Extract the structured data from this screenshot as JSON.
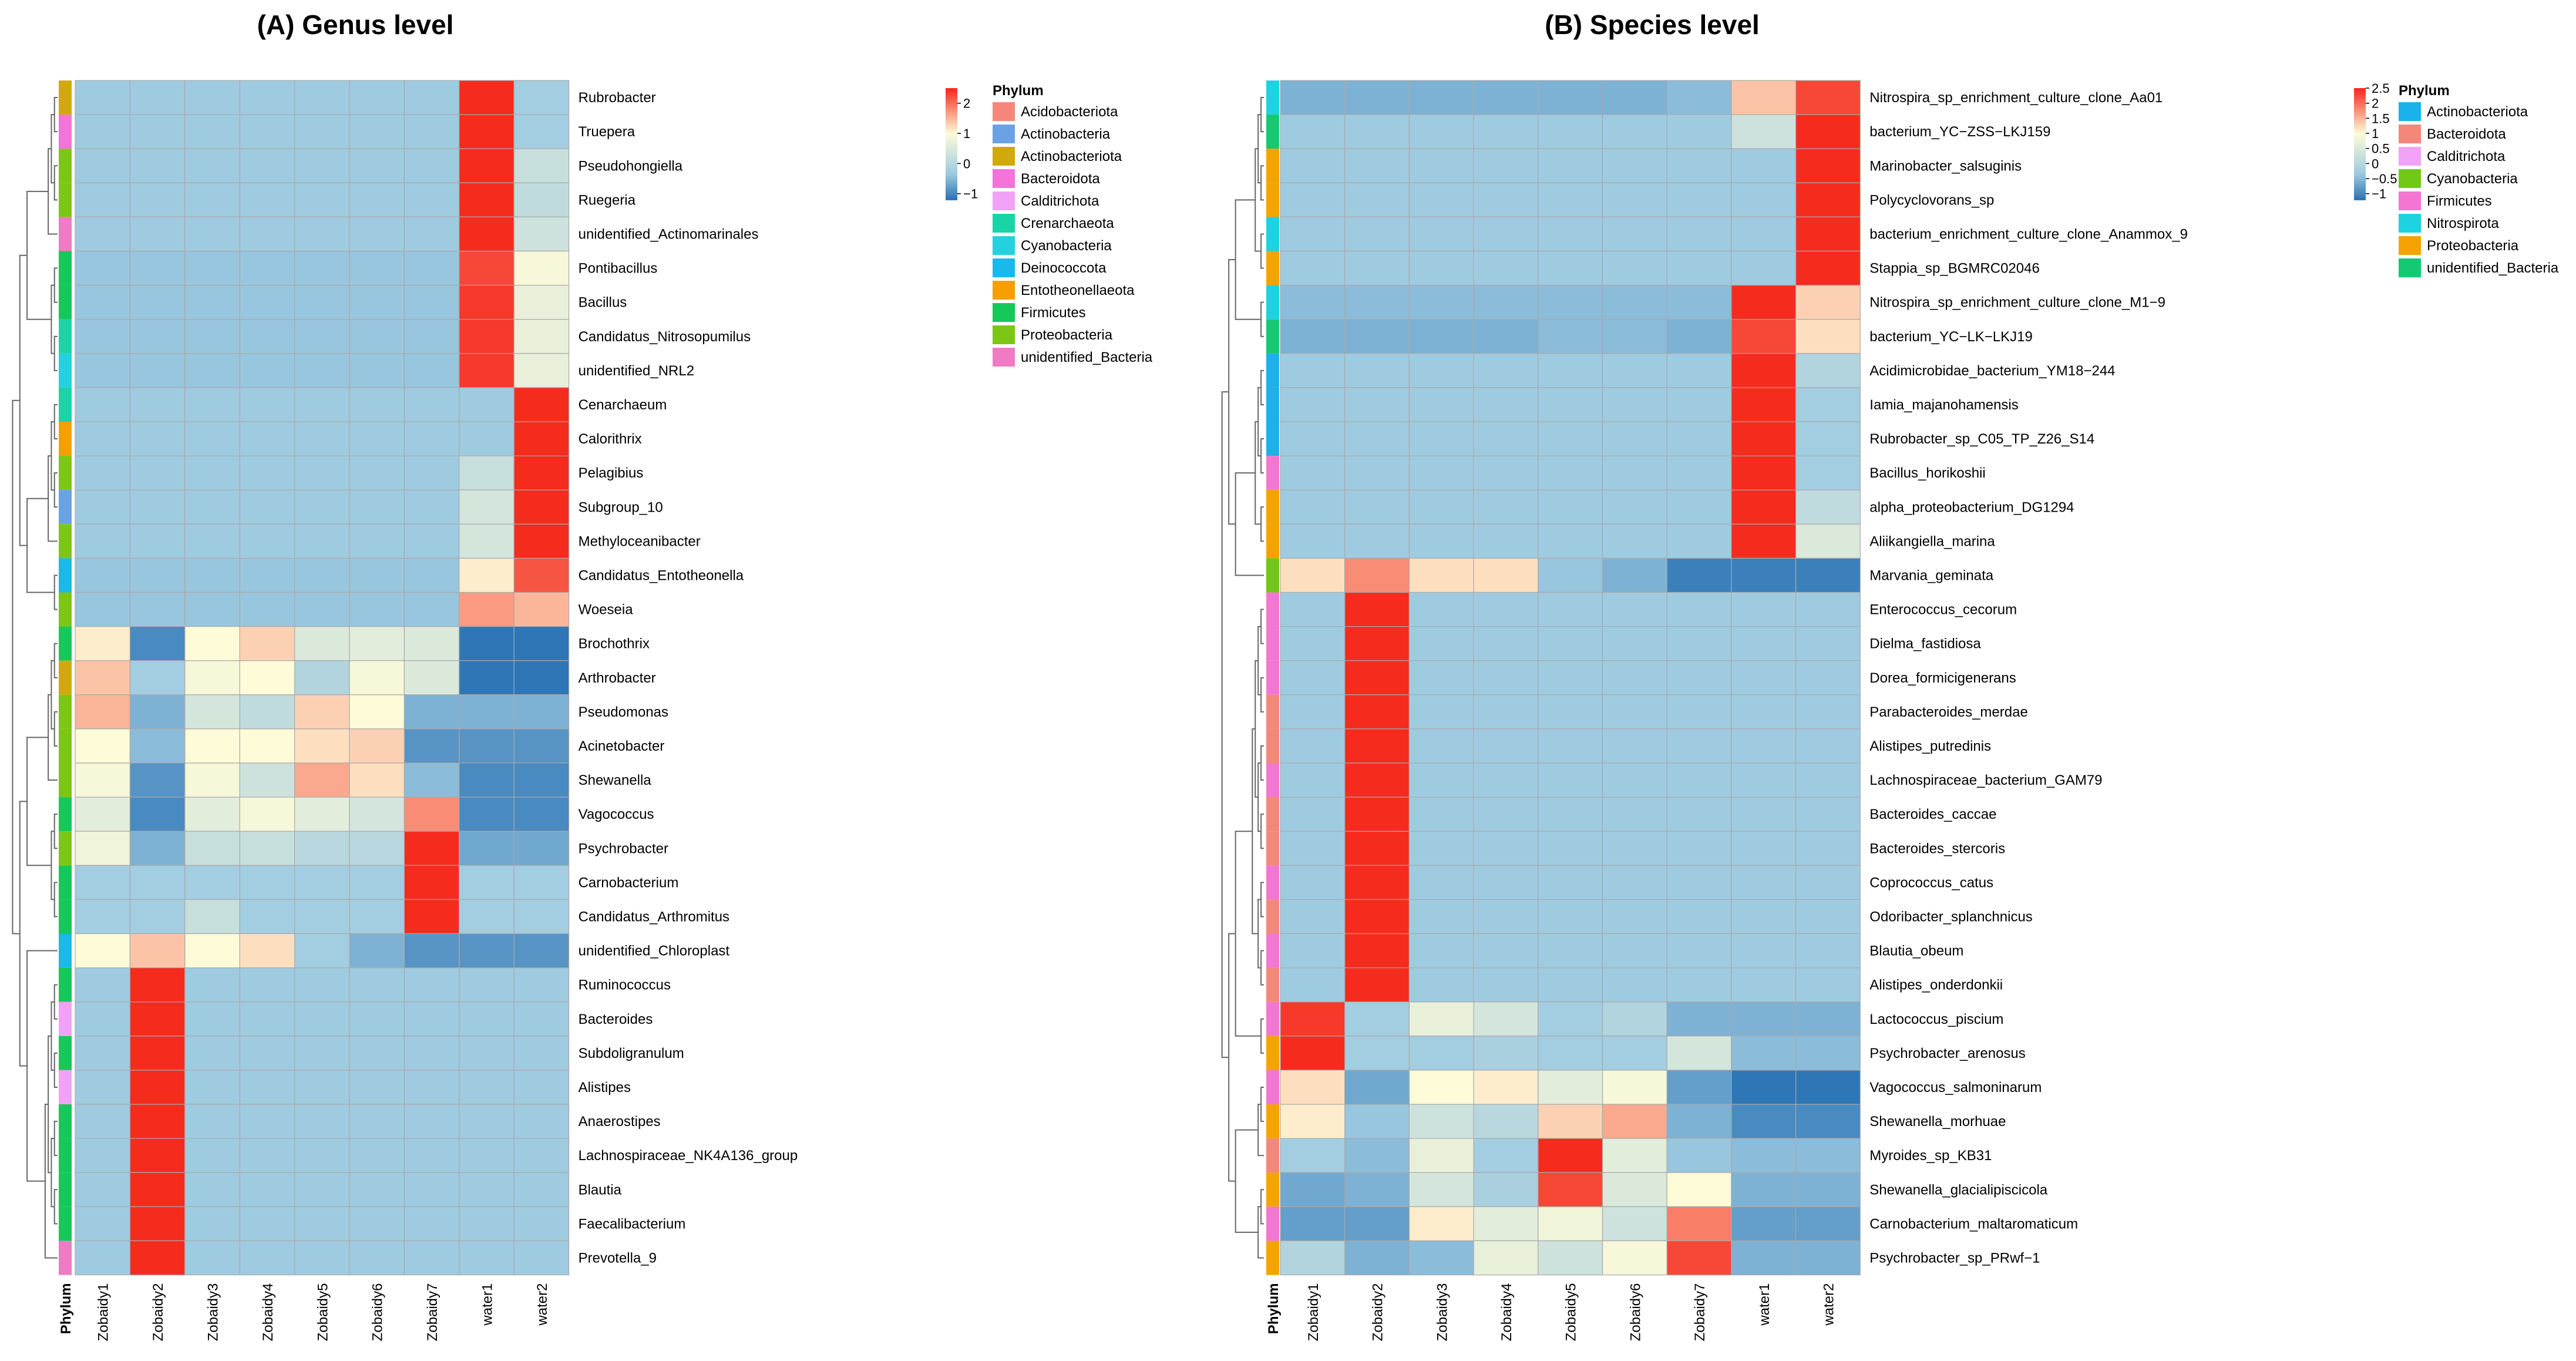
{
  "palette": {
    "scale_neg": "#2f76b6",
    "scale_mid": "#9fcbe1",
    "scale_light": "#fefbd8",
    "scale_pos": "#f52b1e",
    "grid": "#a9a9a9",
    "dendro": "#666666"
  },
  "chart_data": [
    {
      "type": "heatmap",
      "title": "(A) Genus level",
      "columns": [
        "Zobaidy1",
        "Zobaidy2",
        "Zobaidy3",
        "Zobaidy4",
        "Zobaidy5",
        "Zobaidy6",
        "Zobaidy7",
        "water1",
        "water2"
      ],
      "rows": [
        "Rubrobacter",
        "Truepera",
        "Pseudohongiella",
        "Ruegeria",
        "unidentified_Actinomarinales",
        "Pontibacillus",
        "Bacillus",
        "Candidatus_Nitrosopumilus",
        "unidentified_NRL2",
        "Cenarchaeum",
        "Calorithrix",
        "Pelagibius",
        "Subgroup_10",
        "Methyloceanibacter",
        "Candidatus_Entotheonella",
        "Woeseia",
        "Brochothrix",
        "Arthrobacter",
        "Pseudomonas",
        "Acinetobacter",
        "Shewanella",
        "Vagococcus",
        "Psychrobacter",
        "Carnobacterium",
        "Candidatus_Arthromitus",
        "unidentified_Chloroplast",
        "Ruminococcus",
        "Bacteroides",
        "Subdoligranulum",
        "Alistipes",
        "Anaerostipes",
        "Lachnospiraceae_NK4A136_group",
        "Blautia",
        "Faecalibacterium",
        "Prevotella_9"
      ],
      "row_phylum": [
        2,
        3,
        10,
        10,
        11,
        9,
        9,
        5,
        6,
        5,
        8,
        10,
        1,
        10,
        7,
        10,
        9,
        2,
        10,
        10,
        10,
        9,
        10,
        9,
        9,
        7,
        9,
        4,
        9,
        4,
        9,
        9,
        9,
        9,
        11
      ],
      "values": [
        [
          -0.35,
          -0.35,
          -0.35,
          -0.35,
          -0.35,
          -0.35,
          -0.35,
          2.6,
          -0.3
        ],
        [
          -0.35,
          -0.35,
          -0.35,
          -0.35,
          -0.35,
          -0.35,
          -0.35,
          2.6,
          -0.3
        ],
        [
          -0.35,
          -0.35,
          -0.35,
          -0.35,
          -0.35,
          -0.35,
          -0.35,
          2.6,
          0.2
        ],
        [
          -0.35,
          -0.35,
          -0.35,
          -0.35,
          -0.35,
          -0.35,
          -0.35,
          2.6,
          0.1
        ],
        [
          -0.35,
          -0.35,
          -0.35,
          -0.35,
          -0.35,
          -0.35,
          -0.35,
          2.6,
          0.3
        ],
        [
          -0.4,
          -0.4,
          -0.4,
          -0.4,
          -0.4,
          -0.4,
          -0.4,
          2.3,
          0.9
        ],
        [
          -0.4,
          -0.4,
          -0.4,
          -0.4,
          -0.4,
          -0.4,
          -0.4,
          2.4,
          0.7
        ],
        [
          -0.4,
          -0.4,
          -0.4,
          -0.4,
          -0.4,
          -0.4,
          -0.4,
          2.4,
          0.7
        ],
        [
          -0.4,
          -0.4,
          -0.4,
          -0.4,
          -0.4,
          -0.4,
          -0.4,
          2.4,
          0.7
        ],
        [
          -0.35,
          -0.35,
          -0.35,
          -0.35,
          -0.35,
          -0.35,
          -0.35,
          -0.35,
          2.7
        ],
        [
          -0.35,
          -0.35,
          -0.35,
          -0.35,
          -0.35,
          -0.35,
          -0.35,
          -0.35,
          2.7
        ],
        [
          -0.35,
          -0.35,
          -0.35,
          -0.35,
          -0.35,
          -0.35,
          -0.35,
          0.2,
          2.6
        ],
        [
          -0.35,
          -0.35,
          -0.35,
          -0.35,
          -0.35,
          -0.35,
          -0.35,
          0.4,
          2.6
        ],
        [
          -0.35,
          -0.35,
          -0.35,
          -0.35,
          -0.35,
          -0.35,
          -0.35,
          0.4,
          2.6
        ],
        [
          -0.4,
          -0.4,
          -0.4,
          -0.4,
          -0.4,
          -0.4,
          -0.4,
          1.1,
          2.2
        ],
        [
          -0.4,
          -0.4,
          -0.4,
          -0.4,
          -0.4,
          -0.4,
          -0.4,
          1.7,
          1.5
        ],
        [
          1.1,
          -1.0,
          1.0,
          1.3,
          0.5,
          0.6,
          0.5,
          -1.2,
          -1.2
        ],
        [
          1.4,
          -0.3,
          0.9,
          1.0,
          -0.1,
          0.9,
          0.5,
          -1.2,
          -1.2
        ],
        [
          1.5,
          -0.6,
          0.4,
          0.1,
          1.3,
          1.0,
          -0.6,
          -0.6,
          -0.6
        ],
        [
          1.0,
          -0.5,
          1.0,
          1.0,
          1.2,
          1.3,
          -0.9,
          -0.9,
          -0.9
        ],
        [
          0.9,
          -0.9,
          0.9,
          0.3,
          1.6,
          1.2,
          -0.5,
          -1.0,
          -1.0
        ],
        [
          0.6,
          -1.0,
          0.6,
          0.9,
          0.6,
          0.4,
          1.8,
          -1.0,
          -1.0
        ],
        [
          0.8,
          -0.6,
          0.2,
          0.2,
          0.0,
          0.0,
          2.6,
          -0.7,
          -0.7
        ],
        [
          -0.3,
          -0.3,
          -0.3,
          -0.3,
          -0.3,
          -0.3,
          2.8,
          -0.3,
          -0.3
        ],
        [
          -0.3,
          -0.3,
          0.2,
          -0.3,
          -0.3,
          -0.3,
          2.8,
          -0.3,
          -0.3
        ],
        [
          1.0,
          1.4,
          1.0,
          1.2,
          -0.3,
          -0.6,
          -0.9,
          -0.9,
          -0.9
        ],
        [
          -0.35,
          2.8,
          -0.35,
          -0.35,
          -0.35,
          -0.35,
          -0.35,
          -0.35,
          -0.35
        ],
        [
          -0.35,
          2.8,
          -0.35,
          -0.35,
          -0.35,
          -0.35,
          -0.35,
          -0.35,
          -0.35
        ],
        [
          -0.35,
          2.8,
          -0.35,
          -0.35,
          -0.35,
          -0.35,
          -0.35,
          -0.35,
          -0.35
        ],
        [
          -0.35,
          2.8,
          -0.35,
          -0.35,
          -0.35,
          -0.35,
          -0.35,
          -0.35,
          -0.35
        ],
        [
          -0.35,
          2.8,
          -0.35,
          -0.35,
          -0.35,
          -0.35,
          -0.35,
          -0.35,
          -0.35
        ],
        [
          -0.35,
          2.8,
          -0.35,
          -0.35,
          -0.35,
          -0.35,
          -0.35,
          -0.35,
          -0.35
        ],
        [
          -0.35,
          2.8,
          -0.35,
          -0.35,
          -0.35,
          -0.35,
          -0.35,
          -0.35,
          -0.35
        ],
        [
          -0.35,
          2.8,
          -0.35,
          -0.35,
          -0.35,
          -0.35,
          -0.35,
          -0.35,
          -0.35
        ],
        [
          -0.35,
          2.8,
          -0.35,
          -0.35,
          -0.35,
          -0.35,
          -0.35,
          -0.35,
          -0.35
        ]
      ],
      "color_scale": {
        "min": -1.2,
        "max": 2.5,
        "ticks": [
          2,
          1,
          0,
          -1
        ],
        "tick_labels": [
          "2",
          "1",
          "0",
          "−1"
        ]
      },
      "annotation_title": "Phylum",
      "legend": [
        {
          "label": "Acidobacteriota",
          "color": "#f5877a"
        },
        {
          "label": "Actinobacteria",
          "color": "#6aa2e6"
        },
        {
          "label": "Actinobacteriota",
          "color": "#d2a90c"
        },
        {
          "label": "Bacteroidota",
          "color": "#f472d9"
        },
        {
          "label": "Calditrichota",
          "color": "#f2a2f6"
        },
        {
          "label": "Crenarchaeota",
          "color": "#19d5a6"
        },
        {
          "label": "Cyanobacteria",
          "color": "#22d2de"
        },
        {
          "label": "Deinococcota",
          "color": "#1ab9ec"
        },
        {
          "label": "Entotheonellaeota",
          "color": "#f5a000"
        },
        {
          "label": "Firmicutes",
          "color": "#14c95a"
        },
        {
          "label": "Proteobacteria",
          "color": "#7cc713"
        },
        {
          "label": "unidentified_Bacteria",
          "color": "#f07ac3"
        }
      ],
      "phylum_axis_label": "Phylum"
    },
    {
      "type": "heatmap",
      "title": "(B) Species level",
      "columns": [
        "Zobaidy1",
        "Zobaidy2",
        "Zobaidy3",
        "Zobaidy4",
        "Zobaidy5",
        "Zobaidy6",
        "Zobaidy7",
        "water1",
        "water2"
      ],
      "rows": [
        "Nitrospira_sp_enrichment_culture_clone_Aa01",
        "bacterium_YC−ZSS−LKJ159",
        "Marinobacter_salsuginis",
        "Polycyclovorans_sp",
        "bacterium_enrichment_culture_clone_Anammox_9",
        "Stappia_sp_BGMRC02046",
        "Nitrospira_sp_enrichment_culture_clone_M1−9",
        "bacterium_YC−LK−LKJ19",
        "Acidimicrobidae_bacterium_YM18−244",
        "Iamia_majanohamensis",
        "Rubrobacter_sp_C05_TP_Z26_S14",
        "Bacillus_horikoshii",
        "alpha_proteobacterium_DG1294",
        "Aliikangiella_marina",
        "Marvania_geminata",
        "Enterococcus_cecorum",
        "Dielma_fastidiosa",
        "Dorea_formicigenerans",
        "Parabacteroides_merdae",
        "Alistipes_putredinis",
        "Lachnospiraceae_bacterium_GAM79",
        "Bacteroides_caccae",
        "Bacteroides_stercoris",
        "Coprococcus_catus",
        "Odoribacter_splanchnicus",
        "Blautia_obeum",
        "Alistipes_onderdonkii",
        "Lactococcus_piscium",
        "Psychrobacter_arenosus",
        "Vagococcus_salmoninarum",
        "Shewanella_morhuae",
        "Myroides_sp_KB31",
        "Shewanella_glacialipiscicola",
        "Carnobacterium_maltaromaticum",
        "Psychrobacter_sp_PRwf−1"
      ],
      "row_phylum": [
        5,
        7,
        6,
        6,
        5,
        6,
        5,
        7,
        0,
        0,
        0,
        4,
        6,
        6,
        3,
        4,
        4,
        4,
        1,
        1,
        4,
        1,
        1,
        4,
        1,
        4,
        1,
        4,
        6,
        4,
        6,
        1,
        6,
        4,
        6
      ],
      "values": [
        [
          -0.6,
          -0.6,
          -0.6,
          -0.6,
          -0.6,
          -0.6,
          -0.5,
          1.4,
          2.3
        ],
        [
          -0.35,
          -0.35,
          -0.35,
          -0.35,
          -0.35,
          -0.35,
          -0.35,
          0.3,
          2.6
        ],
        [
          -0.35,
          -0.35,
          -0.35,
          -0.35,
          -0.35,
          -0.35,
          -0.35,
          -0.35,
          2.6
        ],
        [
          -0.35,
          -0.35,
          -0.35,
          -0.35,
          -0.35,
          -0.35,
          -0.35,
          -0.35,
          2.6
        ],
        [
          -0.35,
          -0.35,
          -0.35,
          -0.35,
          -0.35,
          -0.35,
          -0.35,
          -0.35,
          2.6
        ],
        [
          -0.35,
          -0.35,
          -0.35,
          -0.35,
          -0.35,
          -0.35,
          -0.35,
          -0.35,
          2.6
        ],
        [
          -0.5,
          -0.5,
          -0.5,
          -0.5,
          -0.5,
          -0.5,
          -0.5,
          2.5,
          1.3
        ],
        [
          -0.6,
          -0.6,
          -0.6,
          -0.6,
          -0.5,
          -0.5,
          -0.6,
          2.3,
          1.2
        ],
        [
          -0.35,
          -0.35,
          -0.35,
          -0.35,
          -0.35,
          -0.35,
          -0.35,
          2.6,
          -0.1
        ],
        [
          -0.35,
          -0.35,
          -0.35,
          -0.35,
          -0.35,
          -0.35,
          -0.35,
          2.6,
          -0.3
        ],
        [
          -0.35,
          -0.35,
          -0.35,
          -0.35,
          -0.35,
          -0.35,
          -0.35,
          2.6,
          -0.3
        ],
        [
          -0.35,
          -0.35,
          -0.35,
          -0.35,
          -0.35,
          -0.35,
          -0.35,
          2.6,
          -0.3
        ],
        [
          -0.35,
          -0.35,
          -0.35,
          -0.35,
          -0.35,
          -0.35,
          -0.35,
          2.6,
          0.1
        ],
        [
          -0.35,
          -0.35,
          -0.35,
          -0.35,
          -0.35,
          -0.35,
          -0.35,
          2.6,
          0.5
        ],
        [
          1.2,
          1.8,
          1.2,
          1.2,
          -0.4,
          -0.6,
          -1.1,
          -1.1,
          -1.1
        ],
        [
          -0.35,
          2.7,
          -0.35,
          -0.35,
          -0.35,
          -0.35,
          -0.35,
          -0.35,
          -0.35
        ],
        [
          -0.35,
          2.7,
          -0.35,
          -0.35,
          -0.35,
          -0.35,
          -0.35,
          -0.35,
          -0.35
        ],
        [
          -0.35,
          2.7,
          -0.35,
          -0.35,
          -0.35,
          -0.35,
          -0.35,
          -0.35,
          -0.35
        ],
        [
          -0.35,
          2.7,
          -0.35,
          -0.35,
          -0.35,
          -0.35,
          -0.35,
          -0.35,
          -0.35
        ],
        [
          -0.35,
          2.7,
          -0.35,
          -0.35,
          -0.35,
          -0.35,
          -0.35,
          -0.35,
          -0.35
        ],
        [
          -0.35,
          2.7,
          -0.35,
          -0.35,
          -0.35,
          -0.35,
          -0.35,
          -0.35,
          -0.35
        ],
        [
          -0.35,
          2.7,
          -0.35,
          -0.35,
          -0.35,
          -0.35,
          -0.35,
          -0.35,
          -0.35
        ],
        [
          -0.35,
          2.7,
          -0.35,
          -0.35,
          -0.35,
          -0.35,
          -0.35,
          -0.35,
          -0.35
        ],
        [
          -0.35,
          2.7,
          -0.35,
          -0.35,
          -0.35,
          -0.35,
          -0.35,
          -0.35,
          -0.35
        ],
        [
          -0.35,
          2.7,
          -0.35,
          -0.35,
          -0.35,
          -0.35,
          -0.35,
          -0.35,
          -0.35
        ],
        [
          -0.35,
          2.7,
          -0.35,
          -0.35,
          -0.35,
          -0.35,
          -0.35,
          -0.35,
          -0.35
        ],
        [
          -0.35,
          2.7,
          -0.35,
          -0.35,
          -0.35,
          -0.35,
          -0.35,
          -0.35,
          -0.35
        ],
        [
          2.4,
          -0.3,
          0.7,
          0.4,
          -0.3,
          -0.1,
          -0.6,
          -0.6,
          -0.6
        ],
        [
          2.6,
          -0.3,
          -0.3,
          -0.2,
          -0.3,
          -0.3,
          0.4,
          -0.5,
          -0.5
        ],
        [
          1.2,
          -0.7,
          1.0,
          1.1,
          0.6,
          0.9,
          -0.8,
          -1.2,
          -1.2
        ],
        [
          1.1,
          -0.4,
          0.3,
          0.0,
          1.3,
          1.6,
          -0.6,
          -1.0,
          -1.0
        ],
        [
          -0.3,
          -0.5,
          0.7,
          -0.3,
          2.6,
          0.6,
          -0.4,
          -0.5,
          -0.5
        ],
        [
          -0.7,
          -0.6,
          0.4,
          -0.2,
          2.3,
          0.5,
          1.0,
          -0.6,
          -0.6
        ],
        [
          -0.8,
          -0.8,
          1.1,
          0.6,
          0.8,
          0.3,
          1.9,
          -0.8,
          -0.8
        ],
        [
          -0.1,
          -0.6,
          -0.5,
          0.7,
          0.3,
          0.9,
          2.3,
          -0.6,
          -0.6
        ]
      ],
      "color_scale": {
        "min": -1.2,
        "max": 2.5,
        "ticks": [
          2.5,
          2,
          1.5,
          1,
          0.5,
          0,
          -0.5,
          -1
        ],
        "tick_labels": [
          "2.5",
          "2",
          "1.5",
          "1",
          "0.5",
          "0",
          "−0.5",
          "−1"
        ]
      },
      "annotation_title": "Phylum",
      "legend": [
        {
          "label": "Actinobacteriota",
          "color": "#1bb1eb"
        },
        {
          "label": "Bacteroidota",
          "color": "#f5877a"
        },
        {
          "label": "Calditrichota",
          "color": "#f2a2f6"
        },
        {
          "label": "Cyanobacteria",
          "color": "#72c817"
        },
        {
          "label": "Firmicutes",
          "color": "#f476d2"
        },
        {
          "label": "Nitrospirota",
          "color": "#1dd3e0"
        },
        {
          "label": "Proteobacteria",
          "color": "#f5a300"
        },
        {
          "label": "unidentified_Bacteria",
          "color": "#14c971"
        }
      ],
      "phylum_axis_label": "Phylum"
    }
  ]
}
